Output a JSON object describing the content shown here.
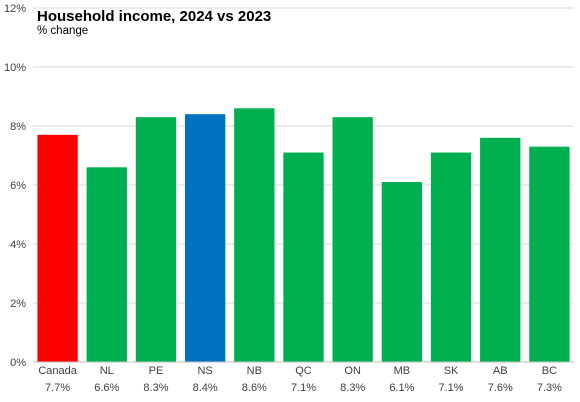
{
  "chart_data": {
    "type": "bar",
    "title": "Household income, 2024 vs 2023",
    "subtitle": "% change",
    "categories": [
      "Canada",
      "NL",
      "PE",
      "NS",
      "NB",
      "QC",
      "ON",
      "MB",
      "SK",
      "AB",
      "BC"
    ],
    "values": [
      7.7,
      6.6,
      8.3,
      8.4,
      8.6,
      7.1,
      8.3,
      6.1,
      7.1,
      7.6,
      7.3
    ],
    "value_labels": [
      "7.7%",
      "6.6%",
      "8.3%",
      "8.4%",
      "8.6%",
      "7.1%",
      "8.3%",
      "6.1%",
      "7.1%",
      "7.6%",
      "7.3%"
    ],
    "bar_colors": [
      "#ff0000",
      "#00b050",
      "#00b050",
      "#0070c0",
      "#00b050",
      "#00b050",
      "#00b050",
      "#00b050",
      "#00b050",
      "#00b050",
      "#00b050"
    ],
    "y_ticks": [
      "0%",
      "2%",
      "4%",
      "6%",
      "8%",
      "10%",
      "12%"
    ],
    "ylim": [
      0,
      12
    ],
    "grid": true,
    "legend": "none"
  }
}
